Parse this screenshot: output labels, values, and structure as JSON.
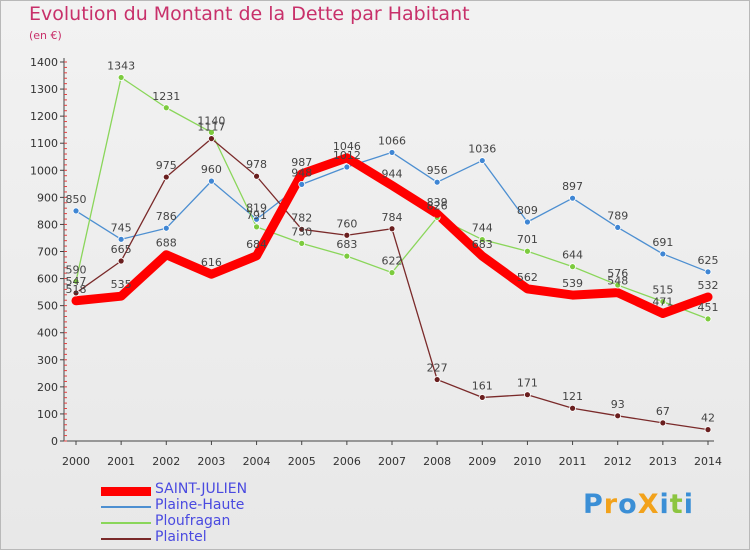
{
  "title": "Evolution du Montant de la Dette par Habitant",
  "unit": "(en €)",
  "logo": {
    "text": "ProXiti",
    "letters": [
      "P",
      "r",
      "o",
      "X",
      "i",
      "t",
      "i"
    ],
    "colors": [
      "#3b8fd6",
      "#f2a21b",
      "#3b8fd6",
      "#f2a21b",
      "#3b8fd6",
      "#8cc540",
      "#3b8fd6"
    ]
  },
  "chart_data": {
    "type": "line",
    "x": [
      2000,
      2001,
      2002,
      2003,
      2004,
      2005,
      2006,
      2007,
      2008,
      2009,
      2010,
      2011,
      2012,
      2013,
      2014
    ],
    "ylim": [
      0,
      1400
    ],
    "yticks": [
      0,
      100,
      200,
      300,
      400,
      500,
      600,
      700,
      800,
      900,
      1000,
      1100,
      1200,
      1300,
      1400
    ],
    "grid": false,
    "legend_position": "bottom-left",
    "series": [
      {
        "name": "Plaine-Haute",
        "color": "#4d8fd1",
        "marker_color": "#3f86d4",
        "width": 1.3,
        "values": [
          850,
          745,
          786,
          960,
          819,
          948,
          1012,
          1066,
          956,
          1036,
          809,
          897,
          789,
          691,
          625
        ],
        "labels": [
          "850",
          "745",
          "786",
          "960",
          "819",
          "948",
          "1012",
          "1066",
          "956",
          "1036",
          "809",
          "897",
          "789",
          "691",
          "625"
        ]
      },
      {
        "name": "Ploufragan",
        "color": "#8ad65a",
        "marker_color": "#7ccb3e",
        "width": 1.3,
        "values": [
          590,
          1343,
          1231,
          1140,
          791,
          730,
          683,
          622,
          826,
          744,
          701,
          644,
          576,
          515,
          451
        ],
        "labels": [
          "590",
          "1343",
          "1231",
          "1140",
          "791",
          "730",
          "683",
          "622",
          "826",
          "744",
          "701",
          "644",
          "576",
          "515",
          "451"
        ]
      },
      {
        "name": "Plaintel",
        "color": "#7a2a2a",
        "marker_color": "#6a1f1f",
        "width": 1.3,
        "values": [
          547,
          665,
          975,
          1117,
          978,
          782,
          760,
          784,
          227,
          161,
          171,
          121,
          93,
          67,
          42
        ],
        "labels": [
          "547",
          "665",
          "975",
          "1117",
          "978",
          "782",
          "760",
          "784",
          "227",
          "161",
          "171",
          "121",
          "93",
          "67",
          "42"
        ]
      },
      {
        "name": "SAINT-JULIEN",
        "color": "#ff0000",
        "marker_color": "#ff0000",
        "width": 9,
        "values": [
          518,
          535,
          688,
          616,
          684,
          987,
          1046,
          944,
          839,
          683,
          562,
          539,
          548,
          471,
          532
        ],
        "labels": [
          "518",
          "535",
          "688",
          "616",
          "684",
          "987",
          "1046",
          "944",
          "839",
          "683",
          "562",
          "539",
          "548",
          "471",
          "532"
        ]
      }
    ],
    "legend": [
      {
        "name": "SAINT-JULIEN",
        "color": "#ff0000",
        "width": 9
      },
      {
        "name": "Plaine-Haute",
        "color": "#4d8fd1",
        "width": 1.5
      },
      {
        "name": "Ploufragan",
        "color": "#8ad65a",
        "width": 1.5
      },
      {
        "name": "Plaintel",
        "color": "#7a2a2a",
        "width": 1.5
      }
    ]
  }
}
